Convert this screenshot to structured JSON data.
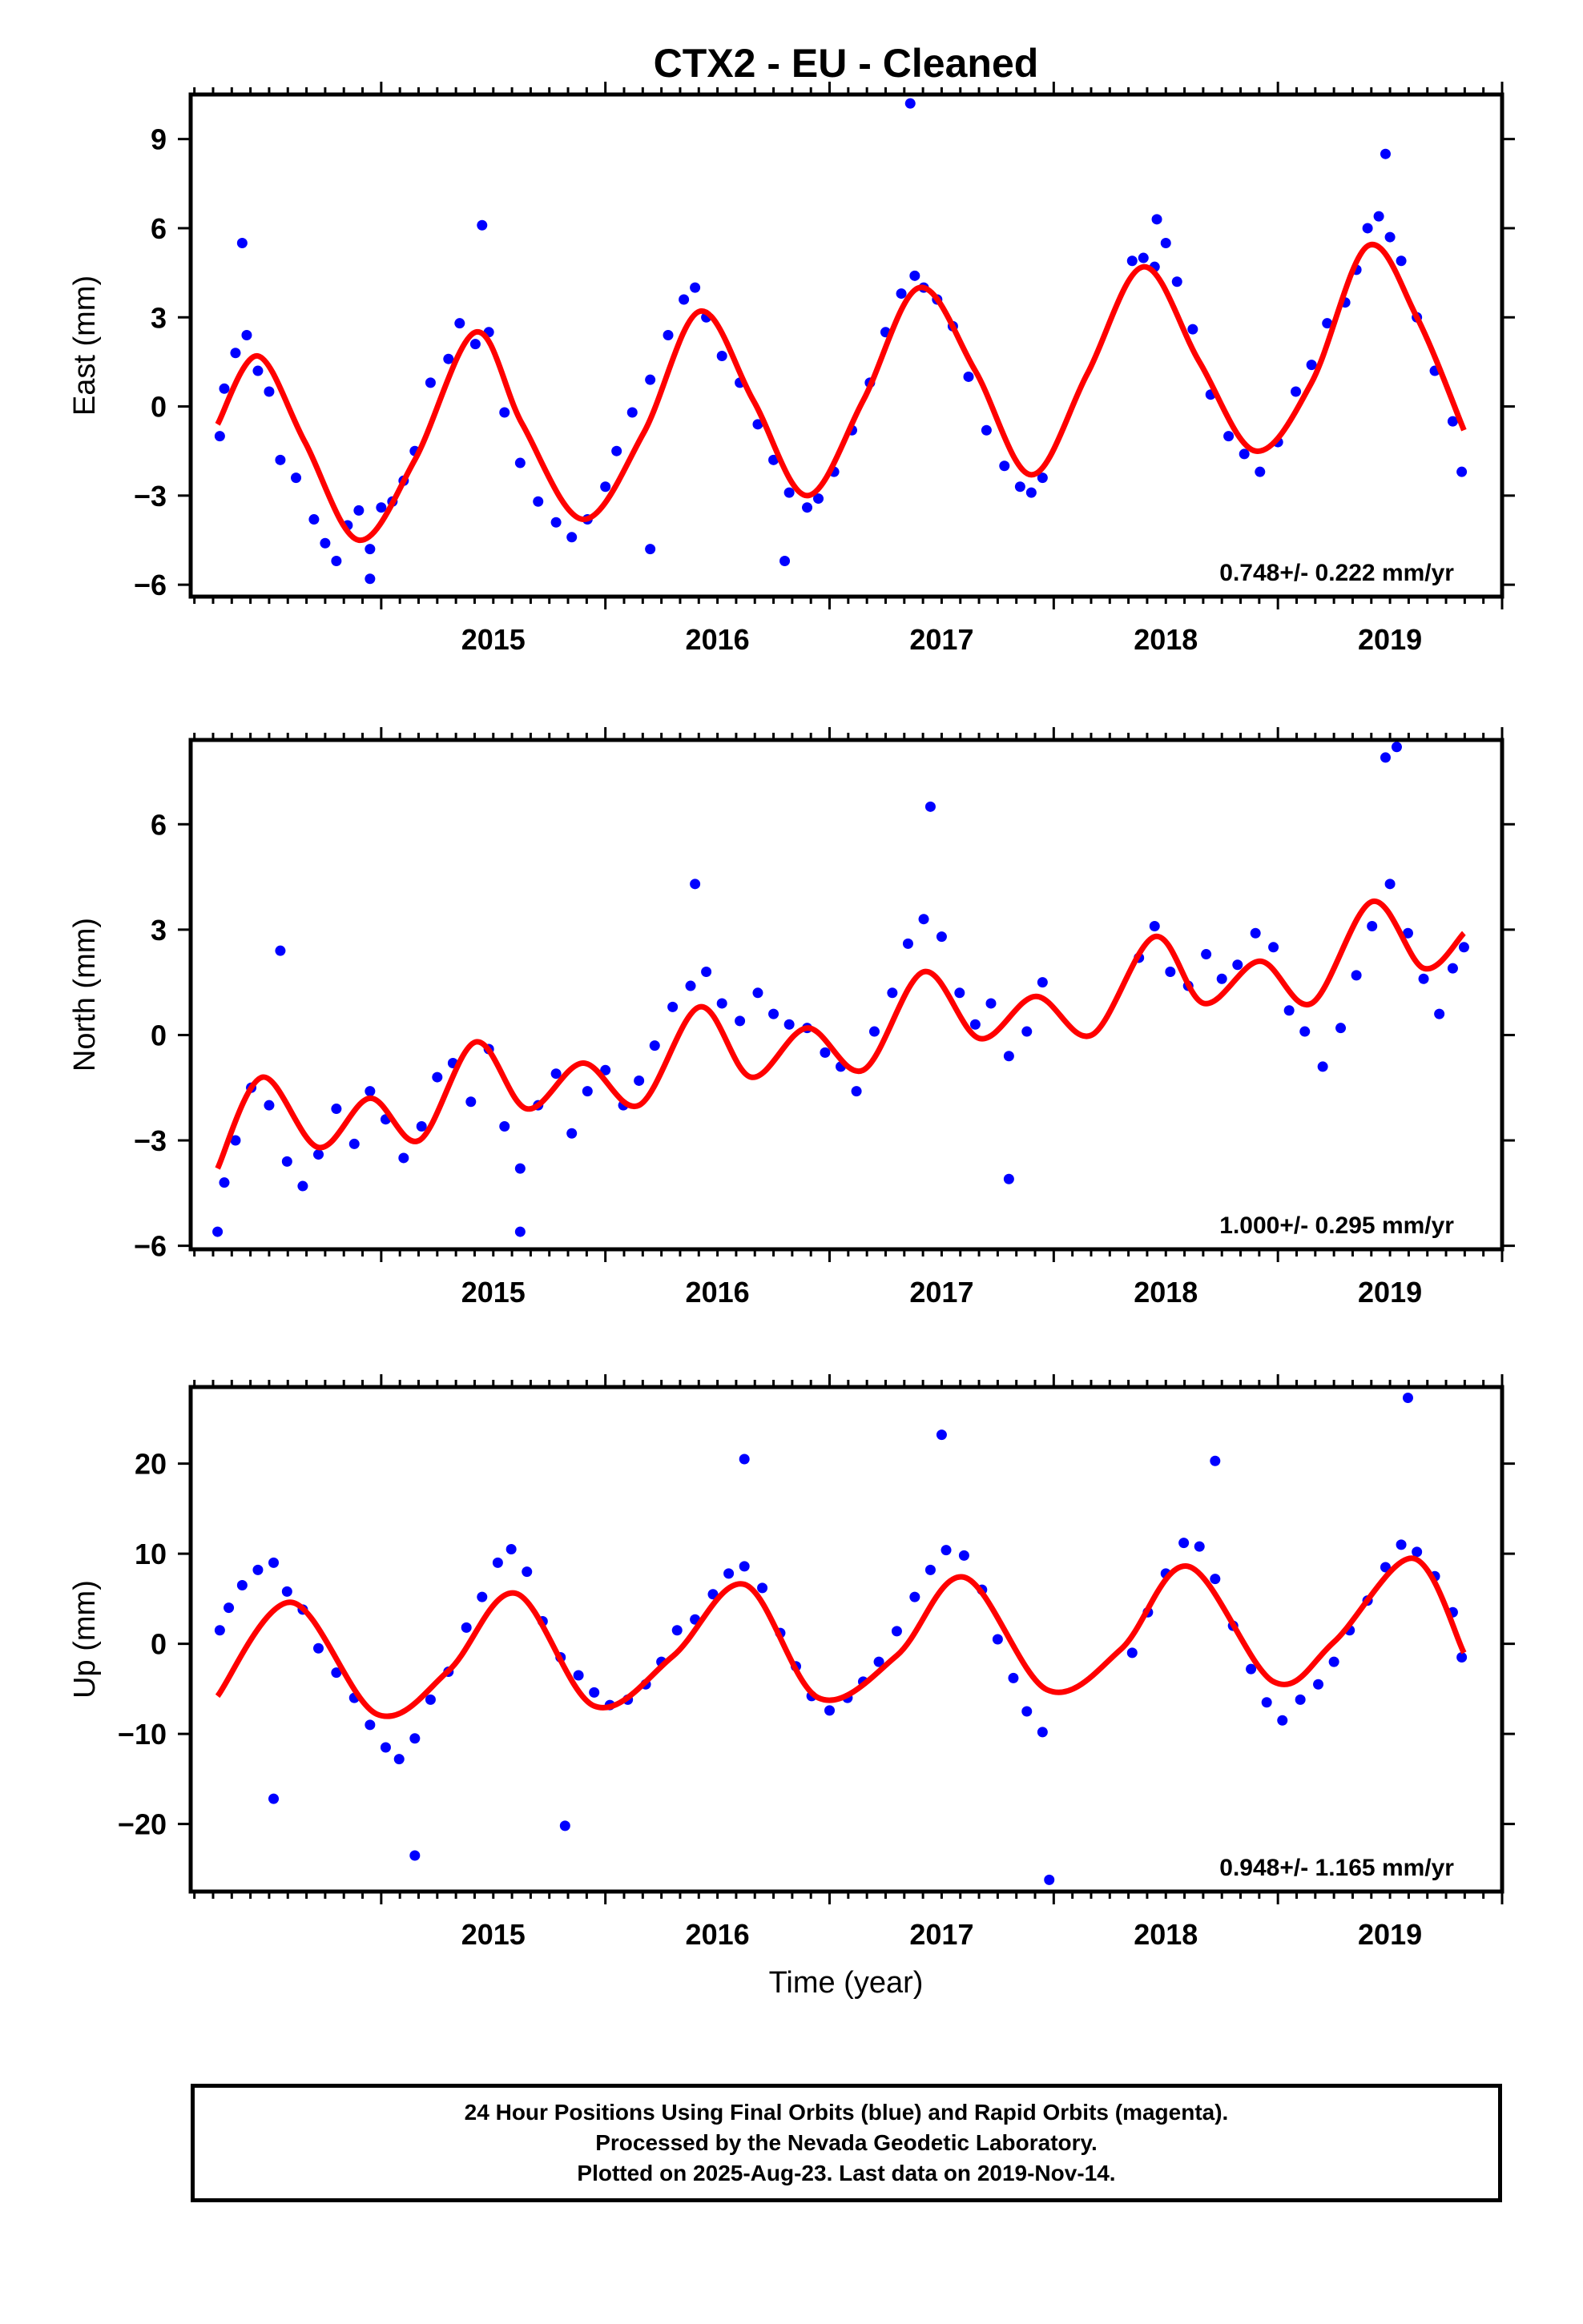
{
  "title": "CTX2  - EU - Cleaned",
  "xlabel": "Time (year)",
  "colors": {
    "points": "#0000ff",
    "model": "#ff0000",
    "frame": "#000000"
  },
  "footer": {
    "line1": "24 Hour Positions Using Final Orbits (blue) and Rapid Orbits (magenta).",
    "line2": "Processed by the Nevada Geodetic Laboratory.",
    "line3": "Plotted on 2025-Aug-23. Last data on 2019-Nov-14."
  },
  "chart_data": [
    {
      "type": "scatter",
      "ylabel": "East (mm)",
      "xlim": [
        2014.15,
        2020.0
      ],
      "ylim": [
        -6.4,
        10.5
      ],
      "xticks": [
        2015,
        2016,
        2017,
        2018,
        2019
      ],
      "yticks": [
        -6,
        -3,
        0,
        3,
        6,
        9
      ],
      "rate_label": "0.748+/- 0.222 mm/yr",
      "model": {
        "x": [
          2014.27,
          2014.45,
          2014.66,
          2014.9,
          2015.15,
          2015.42,
          2015.63,
          2015.9,
          2016.17,
          2016.42,
          2016.66,
          2016.9,
          2017.15,
          2017.4,
          2017.65,
          2017.9,
          2018.15,
          2018.4,
          2018.65,
          2018.9,
          2019.15,
          2019.4,
          2019.62,
          2019.83
        ],
        "y": [
          -0.6,
          1.7,
          -1.2,
          -4.5,
          -1.8,
          2.5,
          -0.6,
          -3.8,
          -0.9,
          3.2,
          0.2,
          -3.0,
          0.2,
          4.0,
          1.2,
          -2.3,
          1.1,
          4.7,
          1.5,
          -1.5,
          0.8,
          5.4,
          3.0,
          -0.8
        ]
      },
      "points": {
        "x": [
          2014.28,
          2014.3,
          2014.35,
          2014.4,
          2014.45,
          2014.5,
          2014.55,
          2014.62,
          2014.7,
          2014.75,
          2014.8,
          2014.85,
          2014.9,
          2014.95,
          2015.0,
          2015.05,
          2015.1,
          2015.15,
          2015.22,
          2015.3,
          2015.35,
          2015.42,
          2015.48,
          2015.55,
          2015.62,
          2015.7,
          2015.78,
          2015.85,
          2015.92,
          2016.0,
          2016.05,
          2016.12,
          2016.2,
          2016.28,
          2016.35,
          2016.4,
          2016.45,
          2016.52,
          2016.6,
          2016.68,
          2016.75,
          2016.82,
          2016.9,
          2016.95,
          2017.02,
          2017.1,
          2017.18,
          2017.25,
          2017.32,
          2017.38,
          2017.42,
          2017.48,
          2017.55,
          2017.62,
          2017.7,
          2017.78,
          2017.85,
          2017.9,
          2017.95,
          2018.35,
          2018.4,
          2018.45,
          2018.5,
          2018.55,
          2018.62,
          2018.7,
          2018.78,
          2018.85,
          2018.92,
          2019.0,
          2019.08,
          2019.15,
          2019.22,
          2019.3,
          2019.35,
          2019.4,
          2019.45,
          2019.5,
          2019.55,
          2019.62,
          2019.7,
          2019.78,
          2019.82,
          2015.45,
          2014.38,
          2017.36,
          2019.48,
          2016.2,
          2014.95,
          2016.8,
          2018.46
        ],
        "y": [
          -1.0,
          0.6,
          1.8,
          2.4,
          1.2,
          0.5,
          -1.8,
          -2.4,
          -3.8,
          -4.6,
          -5.2,
          -4.0,
          -3.5,
          -4.8,
          -3.4,
          -3.2,
          -2.5,
          -1.5,
          0.8,
          1.6,
          2.8,
          2.1,
          2.5,
          -0.2,
          -1.9,
          -3.2,
          -3.9,
          -4.4,
          -3.8,
          -2.7,
          -1.5,
          -0.2,
          0.9,
          2.4,
          3.6,
          4.0,
          3.0,
          1.7,
          0.8,
          -0.6,
          -1.8,
          -2.9,
          -3.4,
          -3.1,
          -2.2,
          -0.8,
          0.8,
          2.5,
          3.8,
          4.4,
          4.0,
          3.6,
          2.7,
          1.0,
          -0.8,
          -2.0,
          -2.7,
          -2.9,
          -2.4,
          4.9,
          5.0,
          4.7,
          5.5,
          4.2,
          2.6,
          0.4,
          -1.0,
          -1.6,
          -2.2,
          -1.2,
          0.5,
          1.4,
          2.8,
          3.5,
          4.6,
          6.0,
          6.4,
          5.7,
          4.9,
          3.0,
          1.2,
          -0.5,
          -2.2,
          6.1,
          5.5,
          10.2,
          8.5,
          -4.8,
          -5.8,
          -5.2,
          6.3
        ]
      }
    },
    {
      "type": "scatter",
      "ylabel": "North (mm)",
      "xlim": [
        2014.15,
        2020.0
      ],
      "ylim": [
        -6.1,
        8.4
      ],
      "xticks": [
        2015,
        2016,
        2017,
        2018,
        2019
      ],
      "yticks": [
        -6,
        -3,
        0,
        3,
        6
      ],
      "rate_label": "1.000+/- 0.295 mm/yr",
      "model": {
        "x": [
          2014.27,
          2014.47,
          2014.72,
          2014.95,
          2015.17,
          2015.42,
          2015.65,
          2015.9,
          2016.15,
          2016.42,
          2016.65,
          2016.9,
          2017.15,
          2017.42,
          2017.67,
          2017.92,
          2018.17,
          2018.45,
          2018.67,
          2018.92,
          2019.15,
          2019.42,
          2019.65,
          2019.83
        ],
        "y": [
          -3.8,
          -1.2,
          -3.2,
          -1.8,
          -3.0,
          -0.2,
          -2.1,
          -0.8,
          -2.0,
          0.8,
          -1.2,
          0.2,
          -1.0,
          1.8,
          -0.1,
          1.1,
          0.0,
          2.8,
          0.9,
          2.1,
          0.9,
          3.8,
          1.9,
          2.9
        ]
      },
      "points": {
        "x": [
          2014.27,
          2014.3,
          2014.35,
          2014.42,
          2014.5,
          2014.58,
          2014.65,
          2014.72,
          2014.8,
          2014.88,
          2014.95,
          2015.02,
          2015.1,
          2015.18,
          2015.25,
          2015.32,
          2015.4,
          2015.48,
          2015.55,
          2015.62,
          2015.7,
          2015.78,
          2015.85,
          2015.92,
          2016.0,
          2016.08,
          2016.15,
          2016.22,
          2016.3,
          2016.38,
          2016.45,
          2016.52,
          2016.6,
          2016.68,
          2016.75,
          2016.82,
          2016.9,
          2016.98,
          2017.05,
          2017.12,
          2017.2,
          2017.28,
          2017.35,
          2017.42,
          2017.5,
          2017.58,
          2017.65,
          2017.72,
          2017.8,
          2017.88,
          2017.95,
          2018.38,
          2018.45,
          2018.52,
          2018.6,
          2018.68,
          2018.75,
          2018.82,
          2018.9,
          2018.98,
          2019.05,
          2019.12,
          2019.2,
          2019.28,
          2019.35,
          2019.42,
          2019.5,
          2019.58,
          2019.65,
          2019.72,
          2019.78,
          2019.83,
          2014.55,
          2015.62,
          2016.4,
          2017.45,
          2019.48,
          2019.53,
          2017.8
        ],
        "y": [
          -5.6,
          -4.2,
          -3.0,
          -1.5,
          -2.0,
          -3.6,
          -4.3,
          -3.4,
          -2.1,
          -3.1,
          -1.6,
          -2.4,
          -3.5,
          -2.6,
          -1.2,
          -0.8,
          -1.9,
          -0.4,
          -2.6,
          -3.8,
          -2.0,
          -1.1,
          -2.8,
          -1.6,
          -1.0,
          -2.0,
          -1.3,
          -0.3,
          0.8,
          1.4,
          1.8,
          0.9,
          0.4,
          1.2,
          0.6,
          0.3,
          0.2,
          -0.5,
          -0.9,
          -1.6,
          0.1,
          1.2,
          2.6,
          3.3,
          2.8,
          1.2,
          0.3,
          0.9,
          -0.6,
          0.1,
          1.5,
          2.2,
          3.1,
          1.8,
          1.4,
          2.3,
          1.6,
          2.0,
          2.9,
          2.5,
          0.7,
          0.1,
          -0.9,
          0.2,
          1.7,
          3.1,
          4.3,
          2.9,
          1.6,
          0.6,
          1.9,
          2.5,
          2.4,
          -5.6,
          4.3,
          6.5,
          7.9,
          8.2,
          -4.1
        ]
      }
    },
    {
      "type": "scatter",
      "ylabel": "Up (mm)",
      "xlim": [
        2014.15,
        2020.0
      ],
      "ylim": [
        -27.5,
        28.5
      ],
      "xticks": [
        2015,
        2016,
        2017,
        2018,
        2019
      ],
      "yticks": [
        -20,
        -10,
        0,
        10,
        20
      ],
      "rate_label": "0.948+/- 1.165 mm/yr",
      "model": {
        "x": [
          2014.27,
          2014.6,
          2014.98,
          2015.3,
          2015.6,
          2015.95,
          2016.3,
          2016.62,
          2016.95,
          2017.3,
          2017.6,
          2017.97,
          2018.3,
          2018.6,
          2018.98,
          2019.25,
          2019.6,
          2019.83
        ],
        "y": [
          -5.8,
          4.6,
          -7.8,
          -3.0,
          5.6,
          -6.9,
          -1.4,
          6.6,
          -6.0,
          -1.3,
          7.4,
          -5.1,
          -0.6,
          8.6,
          -4.2,
          0.2,
          9.5,
          -1.0
        ]
      },
      "points": {
        "x": [
          2014.28,
          2014.32,
          2014.38,
          2014.45,
          2014.52,
          2014.58,
          2014.65,
          2014.72,
          2014.8,
          2014.88,
          2014.95,
          2015.02,
          2015.08,
          2015.15,
          2015.22,
          2015.3,
          2015.38,
          2015.45,
          2015.52,
          2015.58,
          2015.65,
          2015.72,
          2015.8,
          2015.88,
          2015.95,
          2016.02,
          2016.1,
          2016.18,
          2016.25,
          2016.32,
          2016.4,
          2016.48,
          2016.55,
          2016.62,
          2016.7,
          2016.78,
          2016.85,
          2016.92,
          2017.0,
          2017.08,
          2017.15,
          2017.22,
          2017.3,
          2017.38,
          2017.45,
          2017.52,
          2017.6,
          2017.68,
          2017.75,
          2017.82,
          2017.88,
          2017.95,
          2018.35,
          2018.42,
          2018.5,
          2018.58,
          2018.65,
          2018.72,
          2018.8,
          2018.88,
          2018.95,
          2019.02,
          2019.1,
          2019.18,
          2019.25,
          2019.32,
          2019.4,
          2019.48,
          2019.55,
          2019.62,
          2019.7,
          2019.78,
          2019.82,
          2014.52,
          2015.15,
          2015.82,
          2016.62,
          2017.5,
          2017.98,
          2018.72,
          2019.58
        ],
        "y": [
          1.5,
          4.0,
          6.5,
          8.2,
          9.0,
          5.8,
          3.8,
          -0.5,
          -3.2,
          -6.0,
          -9.0,
          -11.5,
          -12.8,
          -10.5,
          -6.2,
          -3.1,
          1.8,
          5.2,
          9.0,
          10.5,
          8.0,
          2.5,
          -1.5,
          -3.5,
          -5.4,
          -6.8,
          -6.2,
          -4.5,
          -2.0,
          1.5,
          2.7,
          5.5,
          7.8,
          8.6,
          6.2,
          1.2,
          -2.5,
          -5.8,
          -7.4,
          -6.0,
          -4.2,
          -2.0,
          1.4,
          5.2,
          8.2,
          10.4,
          9.8,
          6.0,
          0.5,
          -3.8,
          -7.5,
          -9.8,
          -1.0,
          3.5,
          7.8,
          11.2,
          10.8,
          7.2,
          2.0,
          -2.8,
          -6.5,
          -8.5,
          -6.2,
          -4.5,
          -2.0,
          1.5,
          4.8,
          8.5,
          11.0,
          10.2,
          7.5,
          3.5,
          -1.5,
          -17.2,
          -23.5,
          -20.2,
          20.5,
          23.2,
          -26.2,
          20.3,
          27.3
        ]
      }
    }
  ]
}
